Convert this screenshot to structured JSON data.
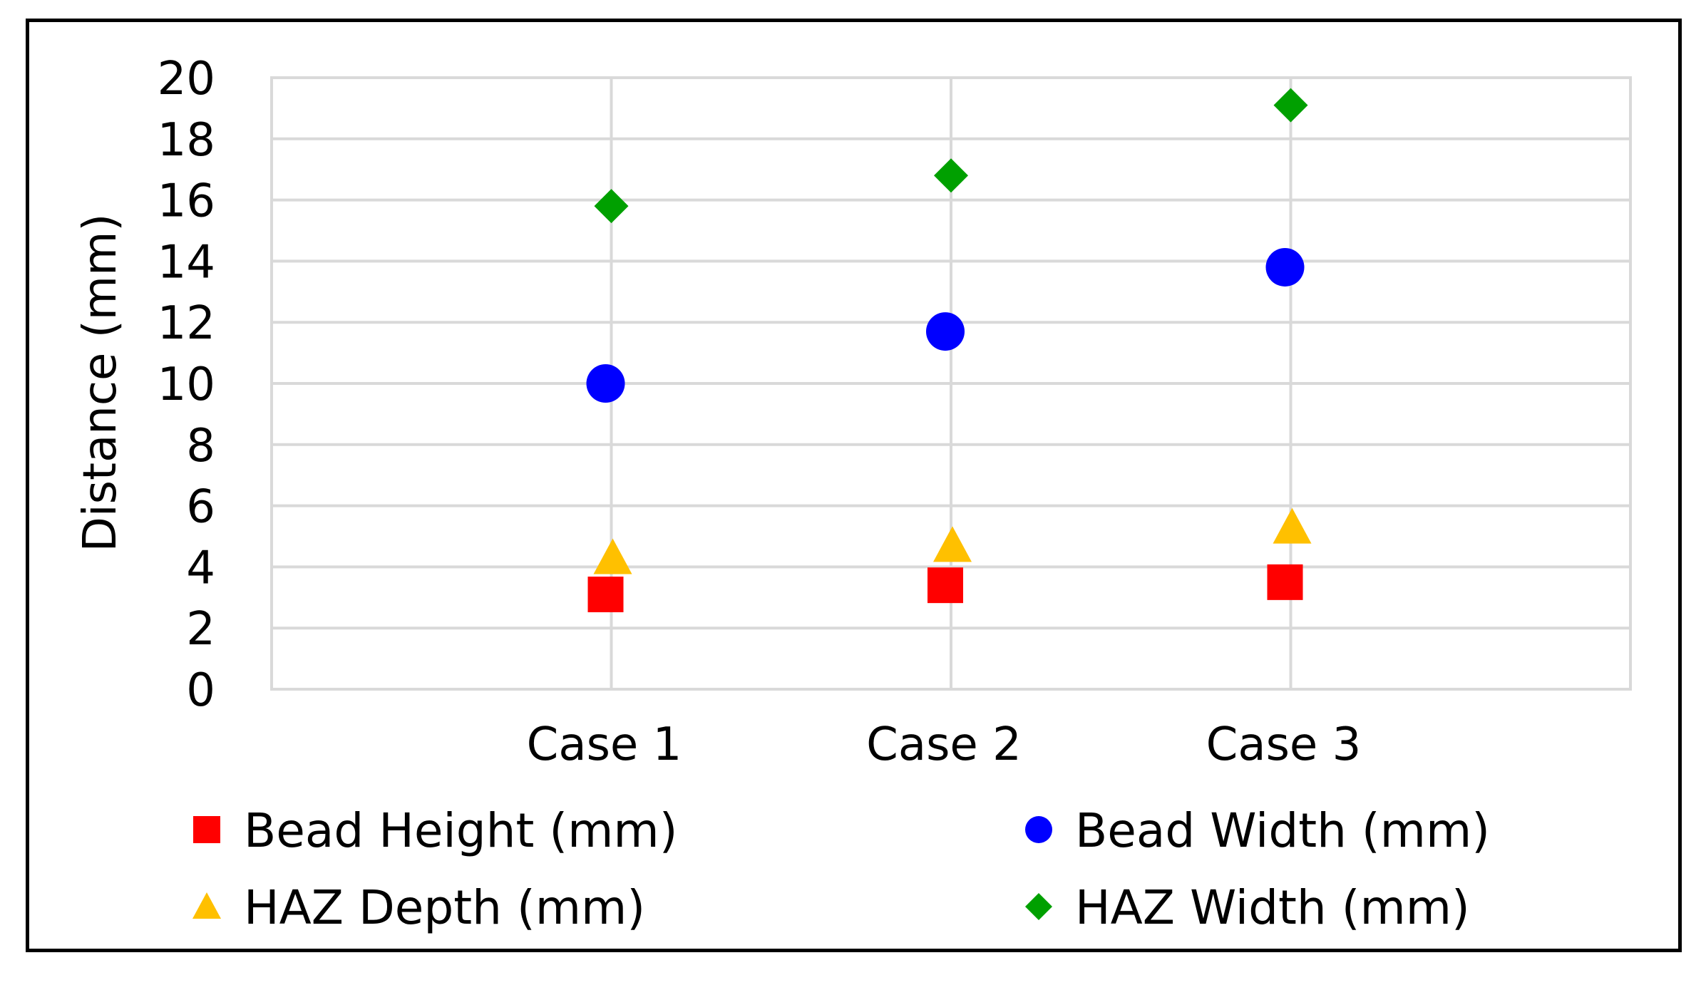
{
  "chart_data": {
    "type": "scatter",
    "title": "",
    "xlabel": "",
    "ylabel": "Distance (mm)",
    "ylim": [
      0,
      20
    ],
    "ytick_step": 2,
    "grid": true,
    "legend_position": "bottom",
    "categories": [
      "Case 1",
      "Case 2",
      "Case 3"
    ],
    "series": [
      {
        "name": "Bead Height (mm)",
        "marker": "square",
        "color": "#ff0000",
        "values": [
          3.1,
          3.4,
          3.5
        ]
      },
      {
        "name": "Bead Width (mm)",
        "marker": "circle",
        "color": "#0000ff",
        "values": [
          10.0,
          11.7,
          13.8
        ]
      },
      {
        "name": "HAZ Depth (mm)",
        "marker": "triangle",
        "color": "#ffc000",
        "values": [
          4.3,
          4.7,
          5.3
        ]
      },
      {
        "name": "HAZ Width (mm)",
        "marker": "diamond",
        "color": "#00a000",
        "values": [
          15.8,
          16.8,
          19.1
        ]
      }
    ]
  }
}
